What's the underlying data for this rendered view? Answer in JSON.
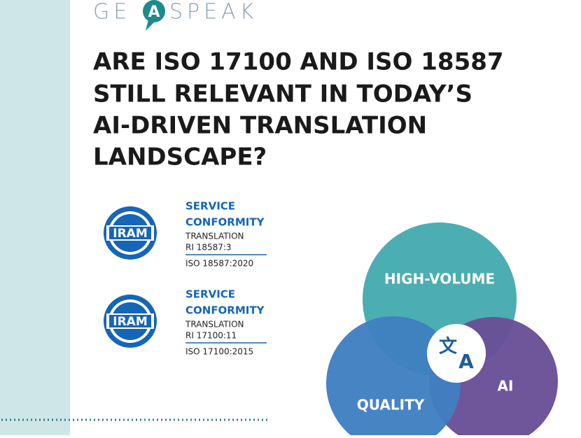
{
  "logo": {
    "left": "GE",
    "mark": "A",
    "right": "SPEAK"
  },
  "title": [
    "ARE ISO 17100 AND ISO 18587",
    "STILL RELEVANT IN TODAY’S",
    "AI-DRIVEN TRANSLATION",
    "LANDSCAPE?"
  ],
  "badges": [
    {
      "seal": "IRAM",
      "line1": "SERVICE",
      "line2": "CONFORMITY",
      "line3": "TRANSLATION",
      "line4": "RI 18587:3",
      "line5": "ISO 18587:2020"
    },
    {
      "seal": "IRAM",
      "line1": "SERVICE",
      "line2": "CONFORMITY",
      "line3": "TRANSLATION",
      "line4": "RI 17100:11",
      "line5": "ISO 17100:2015"
    }
  ],
  "venn": {
    "top": "HIGH-VOLUME",
    "left": "QUALITY",
    "right": "AI",
    "icon_glyph": "文",
    "icon_letter": "A"
  }
}
